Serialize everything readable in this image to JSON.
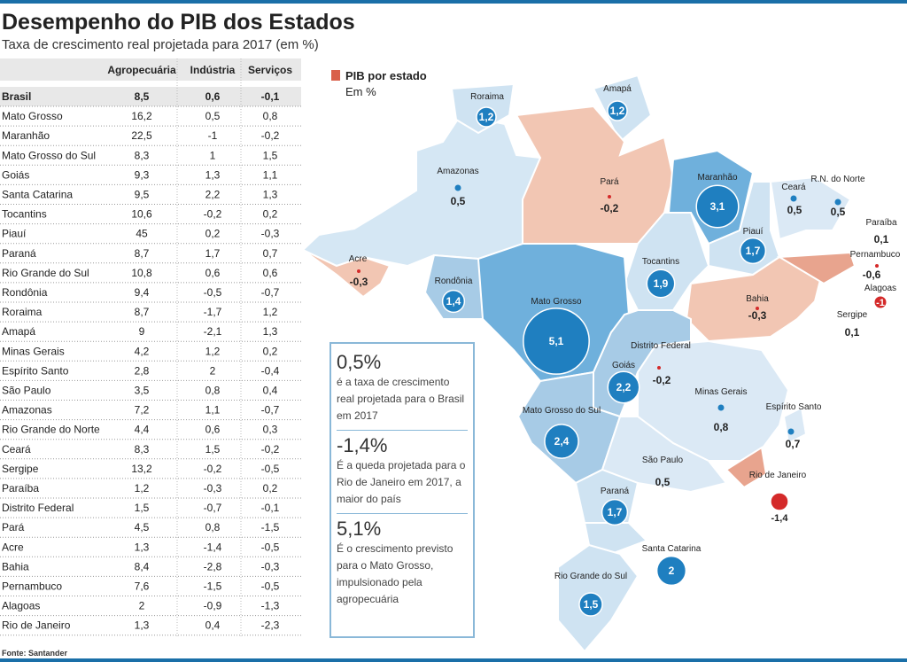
{
  "header": {
    "title": "Desempenho do PIB dos Estados",
    "subtitle": "Taxa de crescimento real projetada para 2017 (em %)"
  },
  "table": {
    "columns": [
      "Agropecuária",
      "Indústria",
      "Serviços"
    ],
    "rows": [
      [
        "Brasil",
        "8,5",
        "0,6",
        "-0,1"
      ],
      [
        "Mato Grosso",
        "16,2",
        "0,5",
        "0,8"
      ],
      [
        "Maranhão",
        "22,5",
        "-1",
        "-0,2"
      ],
      [
        "Mato Grosso do Sul",
        "8,3",
        "1",
        "1,5"
      ],
      [
        "Goiás",
        "9,3",
        "1,3",
        "1,1"
      ],
      [
        "Santa Catarina",
        "9,5",
        "2,2",
        "1,3"
      ],
      [
        "Tocantins",
        "10,6",
        "-0,2",
        "0,2"
      ],
      [
        "Piauí",
        "45",
        "0,2",
        "-0,3"
      ],
      [
        "Paraná",
        "8,7",
        "1,7",
        "0,7"
      ],
      [
        "Rio Grande do Sul",
        "10,8",
        "0,6",
        "0,6"
      ],
      [
        "Rondônia",
        "9,4",
        "-0,5",
        "-0,7"
      ],
      [
        "Roraima",
        "8,7",
        "-1,7",
        "1,2"
      ],
      [
        "Amapá",
        "9",
        "-2,1",
        "1,3"
      ],
      [
        "Minas Gerais",
        "4,2",
        "1,2",
        "0,2"
      ],
      [
        "Espírito Santo",
        "2,8",
        "2",
        "-0,4"
      ],
      [
        "São Paulo",
        "3,5",
        "0,8",
        "0,4"
      ],
      [
        "Amazonas",
        "7,2",
        "1,1",
        "-0,7"
      ],
      [
        "Rio Grande do Norte",
        "4,4",
        "0,6",
        "0,3"
      ],
      [
        "Ceará",
        "8,3",
        "1,5",
        "-0,2"
      ],
      [
        "Sergipe",
        "13,2",
        "-0,2",
        "-0,5"
      ],
      [
        "Paraíba",
        "1,2",
        "-0,3",
        "0,2"
      ],
      [
        "Distrito Federal",
        "1,5",
        "-0,7",
        "-0,1"
      ],
      [
        "Pará",
        "4,5",
        "0,8",
        "-1,5"
      ],
      [
        "Acre",
        "1,3",
        "-1,4",
        "-0,5"
      ],
      [
        "Bahia",
        "8,4",
        "-2,8",
        "-0,3"
      ],
      [
        "Pernambuco",
        "7,6",
        "-1,5",
        "-0,5"
      ],
      [
        "Alagoas",
        "2",
        "-0,9",
        "-1,3"
      ],
      [
        "Rio de Janeiro",
        "1,3",
        "0,4",
        "-2,3"
      ]
    ]
  },
  "source": "Fonte: Santander",
  "map": {
    "legend_title": "PIB por estado",
    "legend_unit": "Em %",
    "states": [
      {
        "name": "Roraima",
        "value": 1.2,
        "label": "1,2"
      },
      {
        "name": "Amapá",
        "value": 1.2,
        "label": "1,2"
      },
      {
        "name": "Amazonas",
        "value": 0.5,
        "label": "0,5"
      },
      {
        "name": "Pará",
        "value": -0.2,
        "label": "-0,2"
      },
      {
        "name": "Maranhão",
        "value": 3.1,
        "label": "3,1"
      },
      {
        "name": "Ceará",
        "value": 0.5,
        "label": "0,5"
      },
      {
        "name": "R.N. do Norte",
        "value": 0.5,
        "label": "0,5"
      },
      {
        "name": "Paraíba",
        "value": 0.1,
        "label": "0,1"
      },
      {
        "name": "Piauí",
        "value": 1.7,
        "label": "1,7"
      },
      {
        "name": "Pernambuco",
        "value": -0.6,
        "label": "-0,6"
      },
      {
        "name": "Alagoas",
        "value": -1,
        "label": "-1"
      },
      {
        "name": "Tocantins",
        "value": 1.9,
        "label": "1,9"
      },
      {
        "name": "Acre",
        "value": -0.3,
        "label": "-0,3"
      },
      {
        "name": "Rondônia",
        "value": 1.4,
        "label": "1,4"
      },
      {
        "name": "Bahia",
        "value": -0.3,
        "label": "-0,3"
      },
      {
        "name": "Mato Grosso",
        "value": 5.1,
        "label": "5,1"
      },
      {
        "name": "Sergipe",
        "value": 0.1,
        "label": "0,1"
      },
      {
        "name": "Distrito Federal",
        "value": -0.2,
        "label": "-0,2"
      },
      {
        "name": "Goiás",
        "value": 2.2,
        "label": "2,2"
      },
      {
        "name": "Minas Gerais",
        "value": 0.8,
        "label": "0,8"
      },
      {
        "name": "Espírito Santo",
        "value": 0.7,
        "label": "0,7"
      },
      {
        "name": "Mato Grosso do Sul",
        "value": 2.4,
        "label": "2,4"
      },
      {
        "name": "São Paulo",
        "value": 0.5,
        "label": "0,5"
      },
      {
        "name": "Rio de Janeiro",
        "value": -1.4,
        "label": "-1,4"
      },
      {
        "name": "Paraná",
        "value": 1.7,
        "label": "1,7"
      },
      {
        "name": "Santa Catarina",
        "value": 2,
        "label": "2"
      },
      {
        "name": "Rio Grande do Sul",
        "value": 1.5,
        "label": "1,5"
      }
    ]
  },
  "callouts": [
    {
      "headline": "0,5%",
      "text": "é a taxa de crescimento real projetada para o Brasil em 2017"
    },
    {
      "headline": "-1,4%",
      "text": "É a queda projetada para o Rio de Janeiro em 2017, a maior do país"
    },
    {
      "headline": "5,1%",
      "text": "É o crescimento previsto para o Mato Grosso, impulsionado pela agropecuária"
    }
  ]
}
